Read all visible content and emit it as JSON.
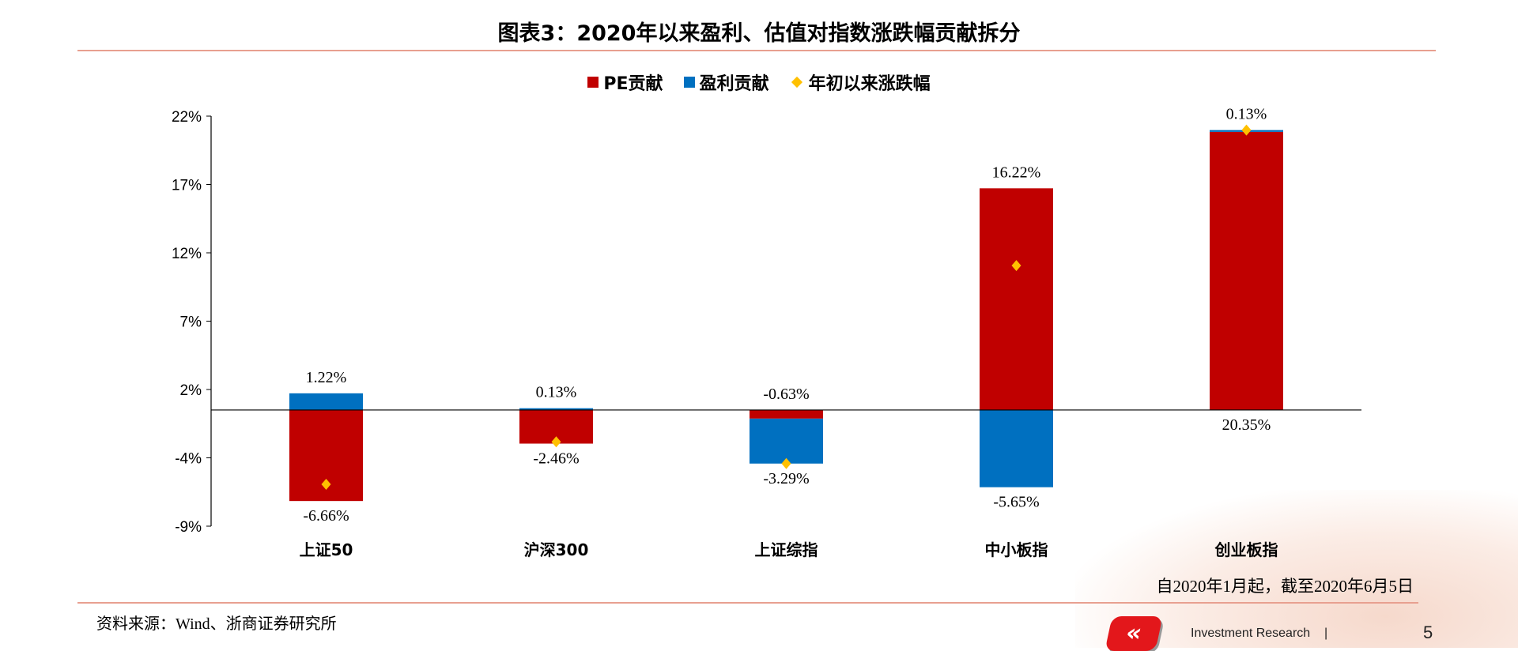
{
  "title": "图表3：2020年以来盈利、估值对指数涨跌幅贡献拆分",
  "note": "自2020年1月起，截至2020年6月5日",
  "source": "资料来源：Wind、浙商证券研究所",
  "footer": {
    "label": "Investment Research",
    "separator": "|",
    "page": "5"
  },
  "chart_data": {
    "type": "bar",
    "stacked": true,
    "categories": [
      "上证50",
      "沪深300",
      "上证综指",
      "中小板指",
      "创业板指"
    ],
    "series": [
      {
        "name": "PE贡献",
        "kind": "bar",
        "color": "#c00000",
        "values": [
          -6.66,
          -2.46,
          -0.63,
          16.22,
          20.35
        ]
      },
      {
        "name": "盈利贡献",
        "kind": "bar",
        "color": "#0070c0",
        "values": [
          1.22,
          0.13,
          -3.29,
          -5.65,
          0.13
        ]
      },
      {
        "name": "年初以来涨跌幅",
        "kind": "marker",
        "color": "#ffc000",
        "values": [
          -5.44,
          -2.33,
          -3.92,
          10.57,
          20.48
        ]
      }
    ],
    "data_labels": [
      [
        "-6.66%",
        "1.22%"
      ],
      [
        "-2.46%",
        "0.13%"
      ],
      [
        "-0.63%",
        "-3.29%"
      ],
      [
        "16.22%",
        "-5.65%"
      ],
      [
        "20.35%",
        "0.13%"
      ]
    ],
    "ylim": [
      -8.5,
      21.5
    ],
    "yticks": [
      21.5,
      16.5,
      11.5,
      6.5,
      1.5,
      -3.5,
      -8.5
    ],
    "ytick_labels": [
      "22%",
      "17%",
      "12%",
      "7%",
      "2%",
      "-4%",
      "-9%"
    ],
    "legend": "top",
    "grid": false
  }
}
